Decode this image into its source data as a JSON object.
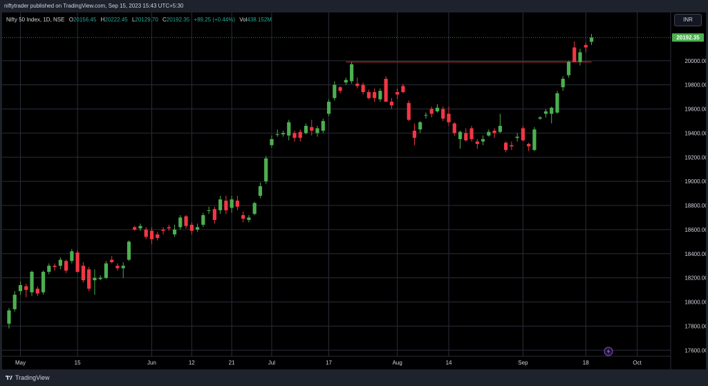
{
  "header": {
    "publisher": "niftytrader published on TradingView.com, Sep 15, 2023 15:43 UTC+5:30"
  },
  "legend": {
    "symbol": "Nifty 50 Index, 1D, NSE",
    "open_label": "O",
    "open": "20156.45",
    "high_label": "H",
    "high": "20222.45",
    "low_label": "L",
    "low": "20129.70",
    "close_label": "C",
    "close": "20192.35",
    "change": "+89.25 (+0.44%)",
    "vol_label": "Vol",
    "vol": "438.152M"
  },
  "currency_button": "INR",
  "footer": {
    "brand": "TradingView"
  },
  "colors": {
    "up": "#4caf50",
    "down": "#f23645",
    "resistance": "#b22833",
    "background": "#000000",
    "grid": "#2a2e39",
    "last_price_bg": "#4caf50"
  },
  "chart_data": {
    "type": "candlestick",
    "grid": true,
    "ylim": [
      17550,
      20400
    ],
    "y_ticks": [
      17600,
      17800,
      18000,
      18200,
      18400,
      18600,
      18800,
      19000,
      19200,
      19400,
      19600,
      19800,
      20000
    ],
    "y_tick_labels": [
      "17600.00",
      "17800.00",
      "18000.00",
      "18200.00",
      "18400.00",
      "18600.00",
      "18800.00",
      "19000.00",
      "19200.00",
      "19400.00",
      "19600.00",
      "19800.00",
      "20000.00"
    ],
    "x_ticks": [
      {
        "idx": 2,
        "label": "May"
      },
      {
        "idx": 12,
        "label": "15"
      },
      {
        "idx": 25,
        "label": "Jun"
      },
      {
        "idx": 32,
        "label": "12"
      },
      {
        "idx": 39,
        "label": "21"
      },
      {
        "idx": 46,
        "label": "Jul"
      },
      {
        "idx": 56,
        "label": "17"
      },
      {
        "idx": 68,
        "label": "Aug"
      },
      {
        "idx": 77,
        "label": "14"
      },
      {
        "idx": 90,
        "label": "Sep"
      },
      {
        "idx": 101,
        "label": "18"
      },
      {
        "idx": 110,
        "label": "Oct"
      }
    ],
    "last_price": 20192.35,
    "last_price_label": "20192.35",
    "resistance": {
      "value": 19990,
      "from_idx": 59,
      "to_idx": 102
    },
    "candles": [
      {
        "o": 17820,
        "h": 17950,
        "l": 17780,
        "c": 17930
      },
      {
        "o": 17940,
        "h": 18090,
        "l": 17920,
        "c": 18060
      },
      {
        "o": 18090,
        "h": 18170,
        "l": 18060,
        "c": 18140
      },
      {
        "o": 18130,
        "h": 18150,
        "l": 18040,
        "c": 18100
      },
      {
        "o": 18080,
        "h": 18260,
        "l": 18050,
        "c": 18250
      },
      {
        "o": 18110,
        "h": 18130,
        "l": 18050,
        "c": 18070
      },
      {
        "o": 18080,
        "h": 18260,
        "l": 18060,
        "c": 18250
      },
      {
        "o": 18250,
        "h": 18320,
        "l": 18230,
        "c": 18300
      },
      {
        "o": 18300,
        "h": 18320,
        "l": 18260,
        "c": 18290
      },
      {
        "o": 18300,
        "h": 18370,
        "l": 18270,
        "c": 18350
      },
      {
        "o": 18340,
        "h": 18350,
        "l": 18240,
        "c": 18260
      },
      {
        "o": 18340,
        "h": 18440,
        "l": 18320,
        "c": 18420
      },
      {
        "o": 18410,
        "h": 18430,
        "l": 18240,
        "c": 18250
      },
      {
        "o": 18300,
        "h": 18330,
        "l": 18160,
        "c": 18180
      },
      {
        "o": 18270,
        "h": 18290,
        "l": 18090,
        "c": 18110
      },
      {
        "o": 18180,
        "h": 18270,
        "l": 18060,
        "c": 18200
      },
      {
        "o": 18190,
        "h": 18220,
        "l": 18180,
        "c": 18200
      },
      {
        "o": 18200,
        "h": 18340,
        "l": 18190,
        "c": 18320
      },
      {
        "o": 18350,
        "h": 18380,
        "l": 18320,
        "c": 18330
      },
      {
        "o": 18300,
        "h": 18320,
        "l": 18260,
        "c": 18280
      },
      {
        "o": 18280,
        "h": 18330,
        "l": 18200,
        "c": 18300
      },
      {
        "o": 18350,
        "h": 18510,
        "l": 18340,
        "c": 18500
      },
      {
        "o": 18620,
        "h": 18630,
        "l": 18590,
        "c": 18600
      },
      {
        "o": 18610,
        "h": 18650,
        "l": 18590,
        "c": 18630
      },
      {
        "o": 18600,
        "h": 18620,
        "l": 18520,
        "c": 18540
      },
      {
        "o": 18590,
        "h": 18620,
        "l": 18480,
        "c": 18520
      },
      {
        "o": 18560,
        "h": 18580,
        "l": 18510,
        "c": 18530
      },
      {
        "o": 18600,
        "h": 18620,
        "l": 18560,
        "c": 18590
      },
      {
        "o": 18620,
        "h": 18640,
        "l": 18590,
        "c": 18610
      },
      {
        "o": 18560,
        "h": 18640,
        "l": 18540,
        "c": 18600
      },
      {
        "o": 18620,
        "h": 18720,
        "l": 18600,
        "c": 18700
      },
      {
        "o": 18710,
        "h": 18720,
        "l": 18610,
        "c": 18630
      },
      {
        "o": 18640,
        "h": 18660,
        "l": 18560,
        "c": 18590
      },
      {
        "o": 18600,
        "h": 18650,
        "l": 18580,
        "c": 18620
      },
      {
        "o": 18640,
        "h": 18740,
        "l": 18620,
        "c": 18720
      },
      {
        "o": 18760,
        "h": 18790,
        "l": 18730,
        "c": 18760
      },
      {
        "o": 18770,
        "h": 18790,
        "l": 18650,
        "c": 18680
      },
      {
        "o": 18760,
        "h": 18880,
        "l": 18730,
        "c": 18850
      },
      {
        "o": 18840,
        "h": 18880,
        "l": 18730,
        "c": 18760
      },
      {
        "o": 18780,
        "h": 18880,
        "l": 18740,
        "c": 18850
      },
      {
        "o": 18840,
        "h": 18880,
        "l": 18760,
        "c": 18790
      },
      {
        "o": 18720,
        "h": 18750,
        "l": 18660,
        "c": 18690
      },
      {
        "o": 18680,
        "h": 18720,
        "l": 18660,
        "c": 18700
      },
      {
        "o": 18730,
        "h": 18830,
        "l": 18720,
        "c": 18820
      },
      {
        "o": 18880,
        "h": 18990,
        "l": 18860,
        "c": 18960
      },
      {
        "o": 19000,
        "h": 19210,
        "l": 18980,
        "c": 19190
      },
      {
        "o": 19300,
        "h": 19380,
        "l": 19280,
        "c": 19350
      },
      {
        "o": 19390,
        "h": 19430,
        "l": 19370,
        "c": 19390
      },
      {
        "o": 19390,
        "h": 19420,
        "l": 19370,
        "c": 19400
      },
      {
        "o": 19380,
        "h": 19510,
        "l": 19340,
        "c": 19490
      },
      {
        "o": 19400,
        "h": 19420,
        "l": 19330,
        "c": 19360
      },
      {
        "o": 19410,
        "h": 19430,
        "l": 19330,
        "c": 19360
      },
      {
        "o": 19400,
        "h": 19480,
        "l": 19390,
        "c": 19460
      },
      {
        "o": 19450,
        "h": 19510,
        "l": 19380,
        "c": 19420
      },
      {
        "o": 19400,
        "h": 19460,
        "l": 19370,
        "c": 19440
      },
      {
        "o": 19420,
        "h": 19520,
        "l": 19400,
        "c": 19500
      },
      {
        "o": 19560,
        "h": 19680,
        "l": 19540,
        "c": 19660
      },
      {
        "o": 19690,
        "h": 19830,
        "l": 19670,
        "c": 19800
      },
      {
        "o": 19780,
        "h": 19790,
        "l": 19730,
        "c": 19750
      },
      {
        "o": 19820,
        "h": 19860,
        "l": 19800,
        "c": 19840
      },
      {
        "o": 19830,
        "h": 19990,
        "l": 19810,
        "c": 19970
      },
      {
        "o": 19810,
        "h": 19860,
        "l": 19770,
        "c": 19790
      },
      {
        "o": 19800,
        "h": 19820,
        "l": 19720,
        "c": 19740
      },
      {
        "o": 19740,
        "h": 19760,
        "l": 19680,
        "c": 19690
      },
      {
        "o": 19740,
        "h": 19770,
        "l": 19660,
        "c": 19690
      },
      {
        "o": 19680,
        "h": 19770,
        "l": 19660,
        "c": 19750
      },
      {
        "o": 19850,
        "h": 19870,
        "l": 19660,
        "c": 19660
      },
      {
        "o": 19660,
        "h": 19690,
        "l": 19600,
        "c": 19630
      },
      {
        "o": 19740,
        "h": 19770,
        "l": 19680,
        "c": 19720
      },
      {
        "o": 19790,
        "h": 19810,
        "l": 19730,
        "c": 19740
      },
      {
        "o": 19650,
        "h": 19670,
        "l": 19500,
        "c": 19510
      },
      {
        "o": 19420,
        "h": 19480,
        "l": 19300,
        "c": 19360
      },
      {
        "o": 19430,
        "h": 19500,
        "l": 19400,
        "c": 19490
      },
      {
        "o": 19550,
        "h": 19570,
        "l": 19520,
        "c": 19550
      },
      {
        "o": 19600,
        "h": 19620,
        "l": 19530,
        "c": 19560
      },
      {
        "o": 19580,
        "h": 19640,
        "l": 19570,
        "c": 19610
      },
      {
        "o": 19600,
        "h": 19620,
        "l": 19500,
        "c": 19520
      },
      {
        "o": 19560,
        "h": 19620,
        "l": 19460,
        "c": 19490
      },
      {
        "o": 19480,
        "h": 19490,
        "l": 19380,
        "c": 19400
      },
      {
        "o": 19350,
        "h": 19420,
        "l": 19270,
        "c": 19410
      },
      {
        "o": 19400,
        "h": 19440,
        "l": 19330,
        "c": 19340
      },
      {
        "o": 19440,
        "h": 19460,
        "l": 19330,
        "c": 19350
      },
      {
        "o": 19330,
        "h": 19350,
        "l": 19270,
        "c": 19310
      },
      {
        "o": 19330,
        "h": 19380,
        "l": 19300,
        "c": 19350
      },
      {
        "o": 19380,
        "h": 19430,
        "l": 19370,
        "c": 19410
      },
      {
        "o": 19420,
        "h": 19440,
        "l": 19360,
        "c": 19400
      },
      {
        "o": 19410,
        "h": 19560,
        "l": 19400,
        "c": 19460
      },
      {
        "o": 19320,
        "h": 19330,
        "l": 19240,
        "c": 19260
      },
      {
        "o": 19300,
        "h": 19330,
        "l": 19260,
        "c": 19290
      },
      {
        "o": 19360,
        "h": 19400,
        "l": 19330,
        "c": 19370
      },
      {
        "o": 19440,
        "h": 19460,
        "l": 19330,
        "c": 19340
      },
      {
        "o": 19310,
        "h": 19320,
        "l": 19250,
        "c": 19290
      },
      {
        "o": 19260,
        "h": 19450,
        "l": 19250,
        "c": 19430
      },
      {
        "o": 19520,
        "h": 19540,
        "l": 19510,
        "c": 19530
      },
      {
        "o": 19560,
        "h": 19600,
        "l": 19530,
        "c": 19580
      },
      {
        "o": 19560,
        "h": 19620,
        "l": 19480,
        "c": 19610
      },
      {
        "o": 19570,
        "h": 19750,
        "l": 19560,
        "c": 19730
      },
      {
        "o": 19780,
        "h": 19870,
        "l": 19750,
        "c": 19850
      },
      {
        "o": 19880,
        "h": 20000,
        "l": 19860,
        "c": 19990
      },
      {
        "o": 20110,
        "h": 20160,
        "l": 19990,
        "c": 19990
      },
      {
        "o": 19990,
        "h": 20100,
        "l": 19960,
        "c": 20070
      },
      {
        "o": 20130,
        "h": 20150,
        "l": 20070,
        "c": 20110
      },
      {
        "o": 20156.45,
        "h": 20222.45,
        "l": 20129.7,
        "c": 20192.35
      }
    ]
  }
}
